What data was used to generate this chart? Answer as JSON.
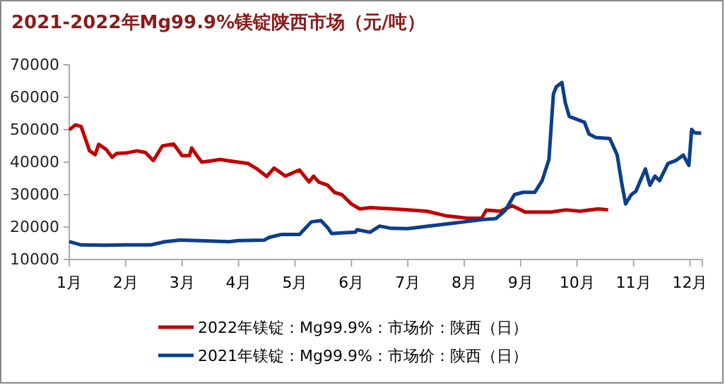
{
  "chart_data": {
    "type": "line",
    "title": "2021-2022年Mg99.9%镁锭陕西市场（元/吨）",
    "xlim": [
      1,
      12.22
    ],
    "xticks": [
      {
        "value": 1,
        "label": "1月"
      },
      {
        "value": 2,
        "label": "2月"
      },
      {
        "value": 3,
        "label": "3月"
      },
      {
        "value": 4,
        "label": "4月"
      },
      {
        "value": 5,
        "label": "5月"
      },
      {
        "value": 6,
        "label": "6月"
      },
      {
        "value": 7,
        "label": "7月"
      },
      {
        "value": 8,
        "label": "8月"
      },
      {
        "value": 9,
        "label": "9月"
      },
      {
        "value": 10,
        "label": "10月"
      },
      {
        "value": 11,
        "label": "11月"
      },
      {
        "value": 12,
        "label": "12月"
      }
    ],
    "ylim": [
      10000,
      70000
    ],
    "yticks": [
      10000,
      20000,
      30000,
      40000,
      50000,
      60000,
      70000
    ],
    "grid": false,
    "legend": "bottom",
    "marker": "none",
    "line_style": "solid",
    "series": [
      {
        "name": "2022年镁锭：Mg99.9%：市场价：陕西（日）",
        "color": "#c00000",
        "x": [
          1,
          1.11,
          1.21,
          1.28,
          1.36,
          1.46,
          1.52,
          1.65,
          1.76,
          1.84,
          2,
          2.2,
          2.35,
          2.49,
          2.65,
          2.85,
          3,
          3.13,
          3.17,
          3.25,
          3.35,
          3.67,
          4,
          4.17,
          4.33,
          4.5,
          4.63,
          4.83,
          5.08,
          5.25,
          5.33,
          5.42,
          5.58,
          5.7,
          5.83,
          6,
          6.15,
          6.33,
          6.75,
          7.33,
          7.67,
          8.06,
          8.31,
          8.39,
          8.64,
          8.85,
          9.08,
          9.54,
          9.8,
          10.05,
          10.38,
          10.55
        ],
        "values": [
          50000,
          51500,
          51000,
          47500,
          43500,
          42300,
          45500,
          44000,
          41500,
          42700,
          42800,
          43500,
          43000,
          40500,
          45000,
          45600,
          42000,
          42000,
          44400,
          42300,
          40000,
          40800,
          40000,
          39600,
          37900,
          35600,
          38200,
          35700,
          37600,
          33900,
          35700,
          33900,
          32900,
          30700,
          30000,
          27100,
          25600,
          26000,
          25600,
          24900,
          23500,
          22700,
          22700,
          25200,
          24900,
          26600,
          24600,
          24600,
          25300,
          24900,
          25600,
          25300
        ]
      },
      {
        "name": "2021年镁锭：Mg99.9%：市场价：陕西（日）",
        "color": "#0b3f8c",
        "x": [
          1,
          1.21,
          1.63,
          2,
          2.45,
          2.7,
          2.96,
          3.3,
          3.83,
          4,
          4.46,
          4.54,
          4.75,
          5.08,
          5.29,
          5.46,
          5.58,
          5.65,
          5.83,
          6.07,
          6.1,
          6.33,
          6.5,
          6.71,
          7,
          7.33,
          7.75,
          8,
          8.31,
          8.56,
          8.73,
          8.89,
          9.04,
          9.25,
          9.38,
          9.5,
          9.58,
          9.63,
          9.73,
          9.79,
          9.86,
          10.13,
          10.21,
          10.33,
          10.58,
          10.71,
          10.79,
          10.86,
          10.96,
          11.04,
          11.21,
          11.29,
          11.38,
          11.46,
          11.61,
          11.75,
          11.88,
          11.98,
          12.03,
          12.08,
          12.2
        ],
        "values": [
          15500,
          14500,
          14400,
          14500,
          14500,
          15500,
          16000,
          15800,
          15500,
          15800,
          16000,
          16800,
          17700,
          17700,
          21600,
          22000,
          19800,
          18000,
          18200,
          18400,
          19200,
          18400,
          20300,
          19600,
          19500,
          20200,
          21100,
          21600,
          22300,
          22600,
          25200,
          30000,
          30700,
          30700,
          34300,
          40800,
          61000,
          63200,
          64600,
          58400,
          54100,
          52300,
          48700,
          47600,
          47300,
          42200,
          33600,
          27100,
          30000,
          31000,
          37900,
          32900,
          35700,
          34300,
          39600,
          40500,
          42200,
          39000,
          50100,
          49100,
          48900
        ]
      }
    ]
  }
}
